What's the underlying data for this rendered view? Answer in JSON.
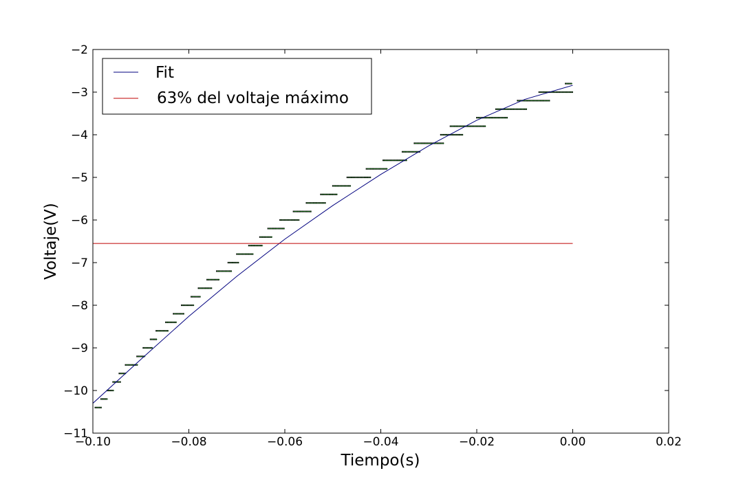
{
  "chart_data": {
    "type": "line",
    "xlabel": "Tiempo(s)",
    "ylabel": "Voltaje(V)",
    "xlim": [
      -0.1,
      0.02
    ],
    "ylim": [
      -11,
      -2
    ],
    "x_ticks": [
      -0.1,
      -0.08,
      -0.06,
      -0.04,
      -0.02,
      0.0,
      0.02
    ],
    "x_tick_labels": [
      "−0.10",
      "−0.08",
      "−0.06",
      "−0.04",
      "−0.02",
      "0.00",
      "0.02"
    ],
    "y_ticks": [
      -11,
      -10,
      -9,
      -8,
      -7,
      -6,
      -5,
      -4,
      -3,
      -2
    ],
    "y_tick_labels": [
      "−11",
      "−10",
      "−9",
      "−8",
      "−7",
      "−6",
      "−5",
      "−4",
      "−3",
      "−2"
    ],
    "grid": false,
    "legend_position": "top-left",
    "series": [
      {
        "name": "Fit",
        "kind": "line",
        "color": "#00007f",
        "x": [
          -0.1,
          -0.09,
          -0.08,
          -0.07,
          -0.06,
          -0.05,
          -0.04,
          -0.03,
          -0.02,
          -0.01,
          0.0
        ],
        "y": [
          -10.3,
          -9.27,
          -8.26,
          -7.32,
          -6.45,
          -5.66,
          -4.93,
          -4.26,
          -3.66,
          -3.17,
          -2.84
        ]
      },
      {
        "name": "63% del voltaje máximo",
        "kind": "line",
        "color": "#bf0000",
        "x": [
          -0.1,
          0.0
        ],
        "y": [
          -6.55,
          -6.55
        ]
      },
      {
        "name": "",
        "kind": "steps",
        "color": "#000000",
        "accent": "#00a000",
        "levels": [
          {
            "y": -10.4,
            "x": [
              -0.0995,
              -0.0982
            ]
          },
          {
            "y": -10.2,
            "x": [
              -0.0983,
              -0.0968
            ]
          },
          {
            "y": -10.0,
            "x": [
              -0.097,
              -0.0955
            ]
          },
          {
            "y": -9.8,
            "x": [
              -0.0958,
              -0.0942
            ]
          },
          {
            "y": -9.6,
            "x": [
              -0.0945,
              -0.093
            ]
          },
          {
            "y": -9.4,
            "x": [
              -0.0932,
              -0.0905
            ]
          },
          {
            "y": -9.2,
            "x": [
              -0.0908,
              -0.089
            ]
          },
          {
            "y": -9.0,
            "x": [
              -0.0895,
              -0.0875
            ]
          },
          {
            "y": -8.8,
            "x": [
              -0.088,
              -0.0865
            ]
          },
          {
            "y": -8.6,
            "x": [
              -0.0868,
              -0.0842
            ]
          },
          {
            "y": -8.4,
            "x": [
              -0.0848,
              -0.0825
            ]
          },
          {
            "y": -8.2,
            "x": [
              -0.0832,
              -0.081
            ]
          },
          {
            "y": -8.0,
            "x": [
              -0.0815,
              -0.0788
            ]
          },
          {
            "y": -7.8,
            "x": [
              -0.0795,
              -0.0775
            ]
          },
          {
            "y": -7.6,
            "x": [
              -0.078,
              -0.0752
            ]
          },
          {
            "y": -7.4,
            "x": [
              -0.0762,
              -0.0735
            ]
          },
          {
            "y": -7.2,
            "x": [
              -0.0742,
              -0.071
            ]
          },
          {
            "y": -7.0,
            "x": [
              -0.0718,
              -0.0695
            ]
          },
          {
            "y": -6.8,
            "x": [
              -0.07,
              -0.0665
            ]
          },
          {
            "y": -6.6,
            "x": [
              -0.0675,
              -0.0645
            ]
          },
          {
            "y": -6.4,
            "x": [
              -0.0652,
              -0.0625
            ]
          },
          {
            "y": -6.2,
            "x": [
              -0.0635,
              -0.06
            ]
          },
          {
            "y": -6.0,
            "x": [
              -0.061,
              -0.057
            ]
          },
          {
            "y": -5.8,
            "x": [
              -0.0582,
              -0.0545
            ]
          },
          {
            "y": -5.6,
            "x": [
              -0.0555,
              -0.0515
            ]
          },
          {
            "y": -5.4,
            "x": [
              -0.0525,
              -0.049
            ]
          },
          {
            "y": -5.2,
            "x": [
              -0.05,
              -0.0462
            ]
          },
          {
            "y": -5.0,
            "x": [
              -0.047,
              -0.042
            ]
          },
          {
            "y": -4.8,
            "x": [
              -0.043,
              -0.0385
            ]
          },
          {
            "y": -4.6,
            "x": [
              -0.0395,
              -0.0345
            ]
          },
          {
            "y": -4.4,
            "x": [
              -0.0355,
              -0.0318
            ]
          },
          {
            "y": -4.2,
            "x": [
              -0.033,
              -0.0268
            ]
          },
          {
            "y": -4.0,
            "x": [
              -0.0275,
              -0.0228
            ]
          },
          {
            "y": -3.8,
            "x": [
              -0.0255,
              -0.018
            ]
          },
          {
            "y": -3.6,
            "x": [
              -0.02,
              -0.0135
            ]
          },
          {
            "y": -3.4,
            "x": [
              -0.016,
              -0.0095
            ]
          },
          {
            "y": -3.2,
            "x": [
              -0.0115,
              -0.0048
            ]
          },
          {
            "y": -3.0,
            "x": [
              -0.007,
              0.0
            ]
          },
          {
            "y": -2.8,
            "x": [
              -0.0015,
              0.0
            ]
          }
        ]
      }
    ]
  }
}
